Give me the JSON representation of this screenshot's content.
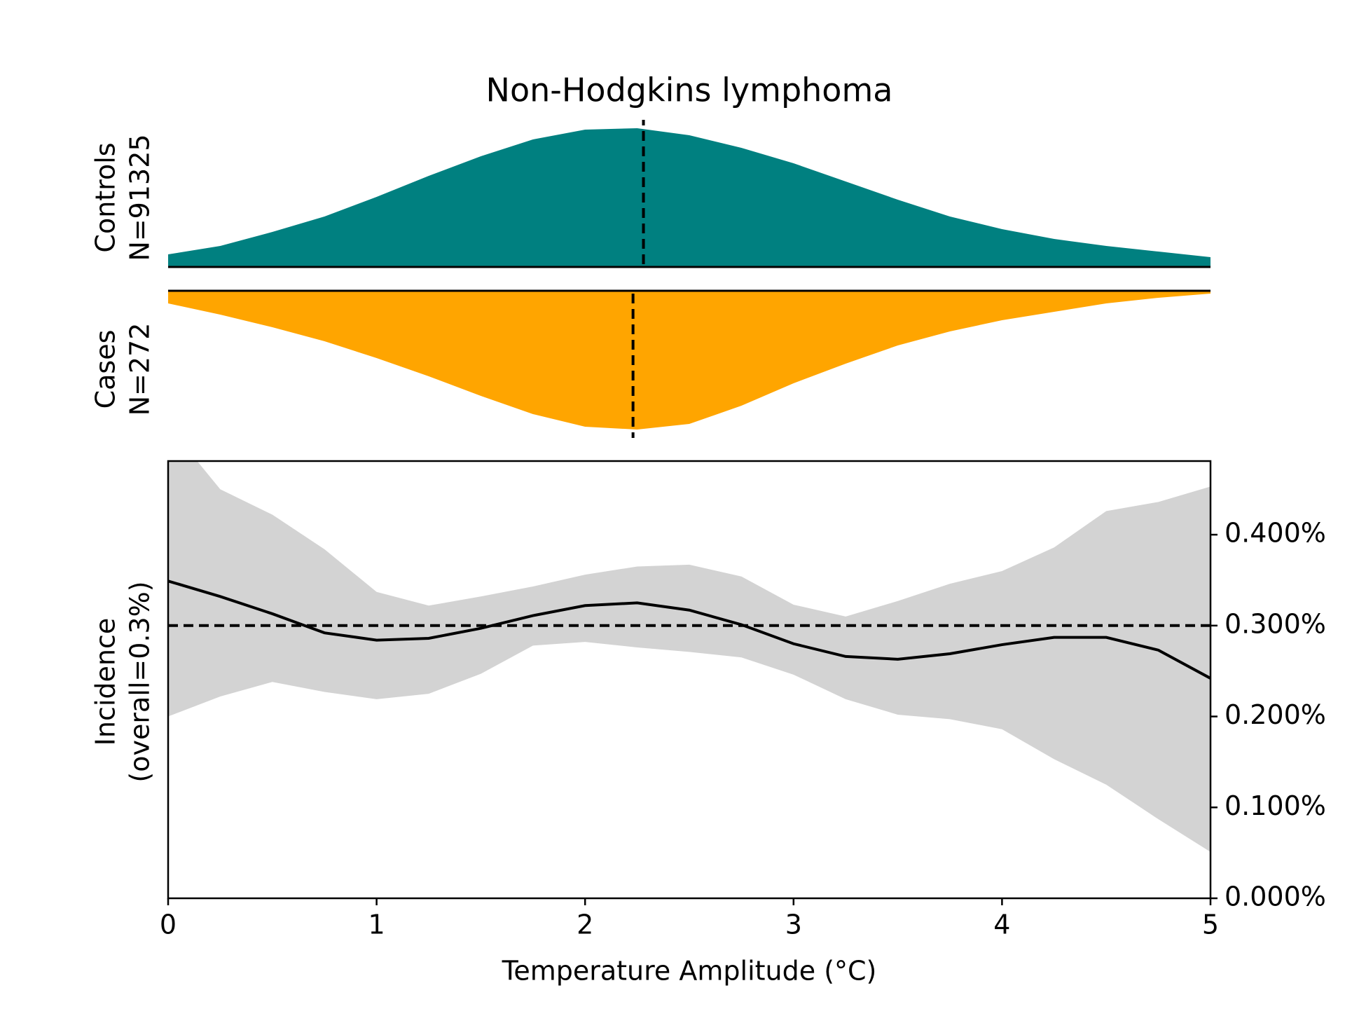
{
  "chart_data": [
    {
      "type": "density",
      "title": "Non-Hodgkins lymphoma",
      "ylabel": [
        "Controls",
        "N=91325"
      ],
      "color": "#008080",
      "direction": "up",
      "x": [
        0,
        0.25,
        0.5,
        0.75,
        1,
        1.25,
        1.5,
        1.75,
        2,
        2.25,
        2.5,
        2.75,
        3,
        3.25,
        3.5,
        3.75,
        4,
        4.25,
        4.5,
        4.75,
        5
      ],
      "values": [
        0.09,
        0.15,
        0.25,
        0.36,
        0.5,
        0.65,
        0.79,
        0.91,
        0.98,
        0.99,
        0.94,
        0.85,
        0.74,
        0.61,
        0.48,
        0.36,
        0.27,
        0.2,
        0.15,
        0.11,
        0.07
      ],
      "median": 2.28,
      "xlim": [
        0,
        5
      ],
      "ylim": [
        0,
        1
      ]
    },
    {
      "type": "density",
      "ylabel": [
        "Cases",
        "N=272"
      ],
      "color": "#ffa500",
      "direction": "down",
      "x": [
        0,
        0.25,
        0.5,
        0.75,
        1,
        1.25,
        1.5,
        1.75,
        2,
        2.25,
        2.5,
        2.75,
        3,
        3.25,
        3.5,
        3.75,
        4,
        4.25,
        4.5,
        4.75,
        5
      ],
      "values": [
        0.09,
        0.17,
        0.26,
        0.36,
        0.48,
        0.61,
        0.75,
        0.88,
        0.97,
        0.99,
        0.95,
        0.82,
        0.66,
        0.52,
        0.39,
        0.29,
        0.21,
        0.15,
        0.09,
        0.05,
        0.02
      ],
      "median": 2.23,
      "xlim": [
        0,
        5
      ],
      "ylim": [
        0,
        1
      ]
    },
    {
      "type": "line",
      "xlabel": "Temperature Amplitude (°C)",
      "ylabel": [
        "Incidence",
        "(overall=0.3%)"
      ],
      "x": [
        0,
        0.25,
        0.5,
        0.75,
        1,
        1.25,
        1.5,
        1.75,
        2,
        2.25,
        2.5,
        2.75,
        3,
        3.25,
        3.5,
        3.75,
        4,
        4.25,
        4.5,
        4.75,
        5
      ],
      "values": [
        0.349,
        0.332,
        0.313,
        0.292,
        0.284,
        0.286,
        0.297,
        0.311,
        0.322,
        0.325,
        0.317,
        0.301,
        0.28,
        0.266,
        0.263,
        0.269,
        0.279,
        0.287,
        0.287,
        0.273,
        0.242
      ],
      "upper": [
        0.52,
        0.45,
        0.422,
        0.384,
        0.337,
        0.322,
        0.332,
        0.343,
        0.356,
        0.365,
        0.367,
        0.354,
        0.323,
        0.31,
        0.327,
        0.346,
        0.36,
        0.386,
        0.426,
        0.436,
        0.453
      ],
      "lower": [
        0.2,
        0.222,
        0.238,
        0.227,
        0.219,
        0.225,
        0.247,
        0.278,
        0.282,
        0.276,
        0.271,
        0.265,
        0.246,
        0.219,
        0.202,
        0.197,
        0.186,
        0.153,
        0.125,
        0.087,
        0.051
      ],
      "color": "#000000",
      "band_color": "#d3d3d3",
      "reference": 0.3,
      "xlim": [
        0,
        5
      ],
      "xticks": [
        0,
        1,
        2,
        3,
        4,
        5
      ],
      "ylim": [
        0,
        0.481
      ],
      "yaxis_side": "right",
      "yticks": [
        {
          "value": 0,
          "label": "0.000%"
        },
        {
          "value": 0.1,
          "label": "0.100%"
        },
        {
          "value": 0.2,
          "label": "0.200%"
        },
        {
          "value": 0.3,
          "label": "0.300%"
        },
        {
          "value": 0.4,
          "label": "0.400%"
        }
      ]
    }
  ]
}
